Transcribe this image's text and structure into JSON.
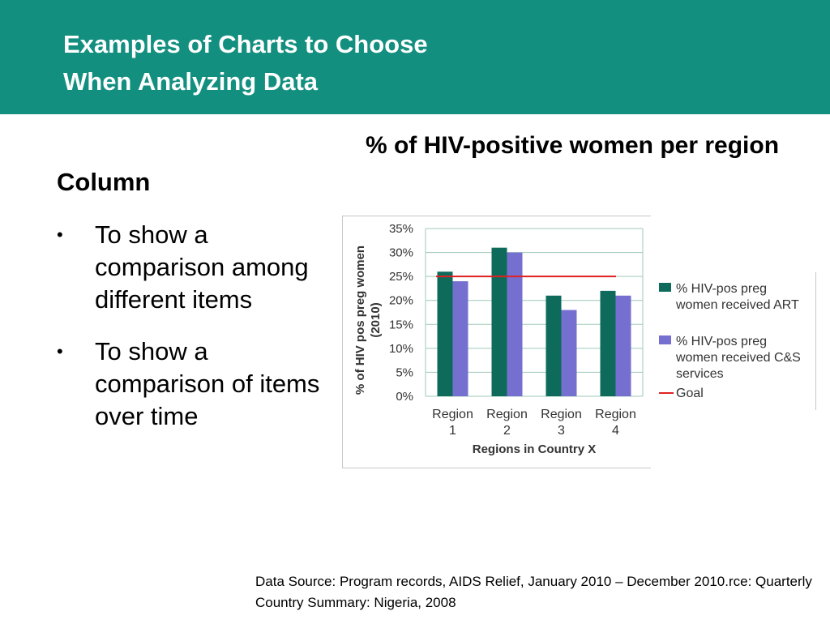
{
  "header": {
    "title_line1": "Examples of Charts to Choose",
    "title_line2": "When Analyzing Data"
  },
  "left": {
    "section_title": "Column",
    "bullet_symbol": "•",
    "bullets": [
      "To show a comparison among different items",
      "To show a comparison of items over time"
    ]
  },
  "colors": {
    "header_bg": "#138f80",
    "series_art": "#0e6b5c",
    "series_cs": "#7570d0",
    "goal": "#e02020",
    "grid": "#9fc9b8"
  },
  "chart_data": {
    "type": "bar",
    "title": "% of HIV-positive women per region",
    "xlabel": "Regions in Country X",
    "ylabel_line1": "% of HIV pos preg women",
    "ylabel_line2": "(2010)",
    "categories": [
      [
        "Region",
        "1"
      ],
      [
        "Region",
        "2"
      ],
      [
        "Region",
        "3"
      ],
      [
        "Region",
        "4"
      ]
    ],
    "ylim": [
      0,
      35
    ],
    "yticks": [
      "0%",
      "5%",
      "10%",
      "15%",
      "20%",
      "25%",
      "30%",
      "35%"
    ],
    "ytick_values": [
      0,
      5,
      10,
      15,
      20,
      25,
      30,
      35
    ],
    "series": [
      {
        "name_line1": "% HIV-pos preg",
        "name_line2": "women received ART",
        "name_line3": "",
        "values": [
          26,
          31,
          21,
          22
        ]
      },
      {
        "name_line1": "% HIV-pos preg",
        "name_line2": "women received C&S",
        "name_line3": "services",
        "values": [
          24,
          30,
          18,
          21
        ]
      }
    ],
    "goal": {
      "name": "Goal",
      "value": 25
    },
    "grid": true,
    "legend_position": "right"
  },
  "source": {
    "line1": "Data Source: Program records, AIDS Relief, January 2010 – December 2010.rce: Quarterly",
    "line2": "Country Summary: Nigeria, 2008"
  }
}
